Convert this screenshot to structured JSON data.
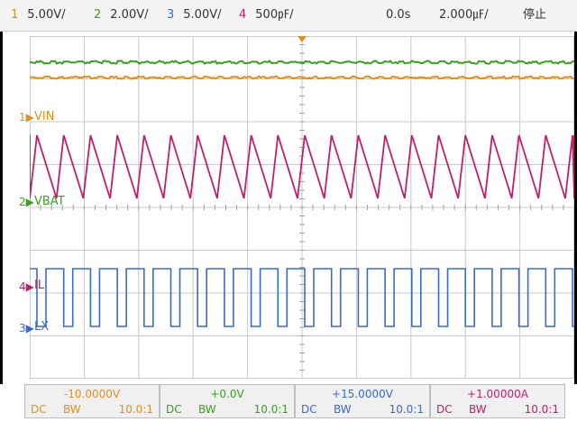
{
  "top": {
    "channels": [
      {
        "num": "1",
        "scale": "5.00V/",
        "color": "#e0901a"
      },
      {
        "num": "2",
        "scale": "2.00V/",
        "color": "#3aa020"
      },
      {
        "num": "3",
        "scale": "5.00V/",
        "color": "#3a6ad0"
      },
      {
        "num": "4",
        "scale": "500㎊/",
        "color": "#c0206a"
      }
    ],
    "delay": "0.0s",
    "timebase": "2.000㎌/",
    "status": "停止"
  },
  "traces": {
    "vin_label": "VIN",
    "vbat_label": "VBAT",
    "il_label": "IL",
    "lx_label": "LX"
  },
  "bottom": {
    "boxes": [
      {
        "offset": "-10.0000V",
        "coupling": "DC",
        "bw": "BW",
        "ratio": "10.0:1",
        "color": "#e0901a"
      },
      {
        "offset": "+0.0V",
        "coupling": "DC",
        "bw": "BW",
        "ratio": "10.0:1",
        "color": "#3aa020"
      },
      {
        "offset": "+15.0000V",
        "coupling": "DC",
        "bw": "BW",
        "ratio": "10.0:1",
        "color": "#3a6ad0"
      },
      {
        "offset": "+1.00000A",
        "coupling": "DC",
        "bw": "BW",
        "ratio": "10.0:1",
        "color": "#c0206a"
      }
    ]
  }
}
